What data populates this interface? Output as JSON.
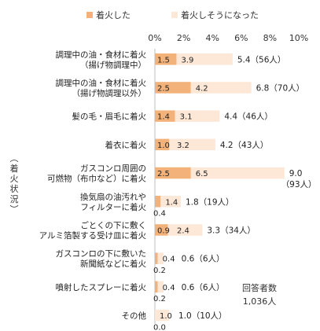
{
  "chart_data": {
    "type": "bar",
    "stacked": true,
    "orientation": "horizontal",
    "legend": {
      "position": "top",
      "entries": [
        {
          "name": "着火した",
          "color": "#f2b27a"
        },
        {
          "name": "着火しそうになった",
          "color": "#fde7d6"
        }
      ]
    },
    "x_ticks": [
      "0%",
      "2%",
      "4%",
      "6%",
      "8%",
      "10%"
    ],
    "xlim": [
      0,
      10
    ],
    "grid": false,
    "y_axis_title": "（着火状況）",
    "categories": [
      [
        "調理中の油・食材に着火",
        "（揚げ物調理中）"
      ],
      [
        "調理中の油・食材に着火",
        "（揚げ物調理以外）"
      ],
      [
        "髪の毛・眉毛に着火"
      ],
      [
        "着衣に着火"
      ],
      [
        "ガスコンロ周囲の",
        "可燃物（布巾など）に着火"
      ],
      [
        "換気扇の油汚れや",
        "フィルターに着火"
      ],
      [
        "ごとくの下に敷く",
        "アルミ箔製する受け皿に着火"
      ],
      [
        "ガスコンロの下に敷いた",
        "新聞紙などに着火"
      ],
      [
        "噴射したスプレーに着火"
      ],
      [
        "その他"
      ]
    ],
    "series": [
      {
        "name": "着火した",
        "values": [
          1.5,
          2.5,
          1.4,
          1.0,
          2.5,
          0.4,
          0.9,
          0.2,
          0.2,
          0.0
        ]
      },
      {
        "name": "着火しそうになった",
        "values": [
          3.9,
          4.2,
          3.1,
          3.2,
          6.5,
          1.4,
          2.4,
          0.4,
          0.4,
          1.0
        ]
      }
    ],
    "totals": [
      "5.4（56人）",
      "6.8（70人）",
      "4.4（46人）",
      "4.2（43人）",
      "9.0",
      "1.8（19人）",
      "3.3（34人）",
      "0.6（6人）",
      "0.6（6人）",
      "1.0（10人）"
    ],
    "totals_extra": {
      "4": "（93人）"
    },
    "fired_labels": [
      "1.5",
      "2.5",
      "1.4",
      "1.0",
      "2.5",
      "0.4",
      "0.9",
      "0.2",
      "0.2",
      "0.0"
    ],
    "near_labels": [
      "3.9",
      "4.2",
      "3.1",
      "3.2",
      "6.5",
      "1.4",
      "2.4",
      "0.4",
      "0.4",
      "1.0"
    ],
    "note": [
      "回答者数",
      "1,036人"
    ]
  }
}
